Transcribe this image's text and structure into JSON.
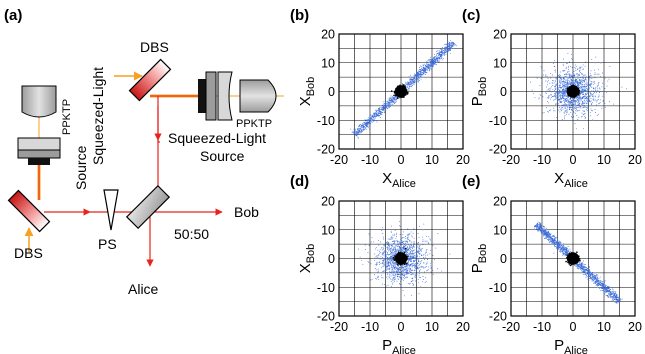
{
  "panel_labels": {
    "a": "(a)",
    "b": "(b)",
    "c": "(c)",
    "d": "(d)",
    "e": "(e)"
  },
  "setup": {
    "dbs_top": "DBS",
    "dbs_bottom": "DBS",
    "ppktp_left": "PPKTP",
    "ppktp_right": "PPKTP",
    "source_left_line1": "Squeezed-Light",
    "source_left_line2": "Source",
    "source_right_line1": "Squeezed-Light",
    "source_right_line2": "Source",
    "ps": "PS",
    "bs": "50:50",
    "bob": "Bob",
    "alice": "Alice"
  },
  "colors": {
    "beam_red": "#e8231f",
    "beam_orange": "#f7a021",
    "scatter_blue": "#3a6bd8",
    "core_black": "#000000"
  },
  "plot_axes": {
    "ticks": [
      "-20",
      "-10",
      "0",
      "10",
      "20"
    ],
    "x_alice_main": "X",
    "x_alice_sub": "Alice",
    "p_alice_main": "P",
    "p_alice_sub": "Alice",
    "x_bob_main": "X",
    "x_bob_sub": "Bob",
    "p_bob_main": "P",
    "p_bob_sub": "Bob"
  },
  "chart_data": [
    {
      "panel": "(b)",
      "type": "scatter",
      "xlabel": "X_Alice",
      "ylabel": "X_Bob",
      "xlim": [
        -20,
        20
      ],
      "ylim": [
        -20,
        20
      ],
      "grid": true,
      "series": [
        {
          "shape": "correlated",
          "color": "#3a6bd8",
          "extent": [
            -15,
            17
          ]
        },
        {
          "shape": "core",
          "color": "#000000",
          "radius": 2
        }
      ]
    },
    {
      "panel": "(c)",
      "type": "scatter",
      "xlabel": "X_Alice",
      "ylabel": "P_Bob",
      "xlim": [
        -20,
        20
      ],
      "ylim": [
        -20,
        20
      ],
      "grid": true,
      "series": [
        {
          "shape": "isotropic",
          "color": "#3a6bd8",
          "sigma": 5
        },
        {
          "shape": "core",
          "color": "#000000",
          "radius": 2
        }
      ]
    },
    {
      "panel": "(d)",
      "type": "scatter",
      "xlabel": "P_Alice",
      "ylabel": "X_Bob",
      "xlim": [
        -20,
        20
      ],
      "ylim": [
        -20,
        20
      ],
      "grid": true,
      "series": [
        {
          "shape": "isotropic",
          "color": "#3a6bd8",
          "sigma": 5
        },
        {
          "shape": "core",
          "color": "#000000",
          "radius": 2
        }
      ]
    },
    {
      "panel": "(e)",
      "type": "scatter",
      "xlabel": "P_Alice",
      "ylabel": "P_Bob",
      "xlim": [
        -20,
        20
      ],
      "ylim": [
        -20,
        20
      ],
      "grid": true,
      "series": [
        {
          "shape": "anticorrelated",
          "color": "#3a6bd8",
          "extent": [
            -12,
            15
          ]
        },
        {
          "shape": "core",
          "color": "#000000",
          "radius": 2
        }
      ]
    }
  ]
}
